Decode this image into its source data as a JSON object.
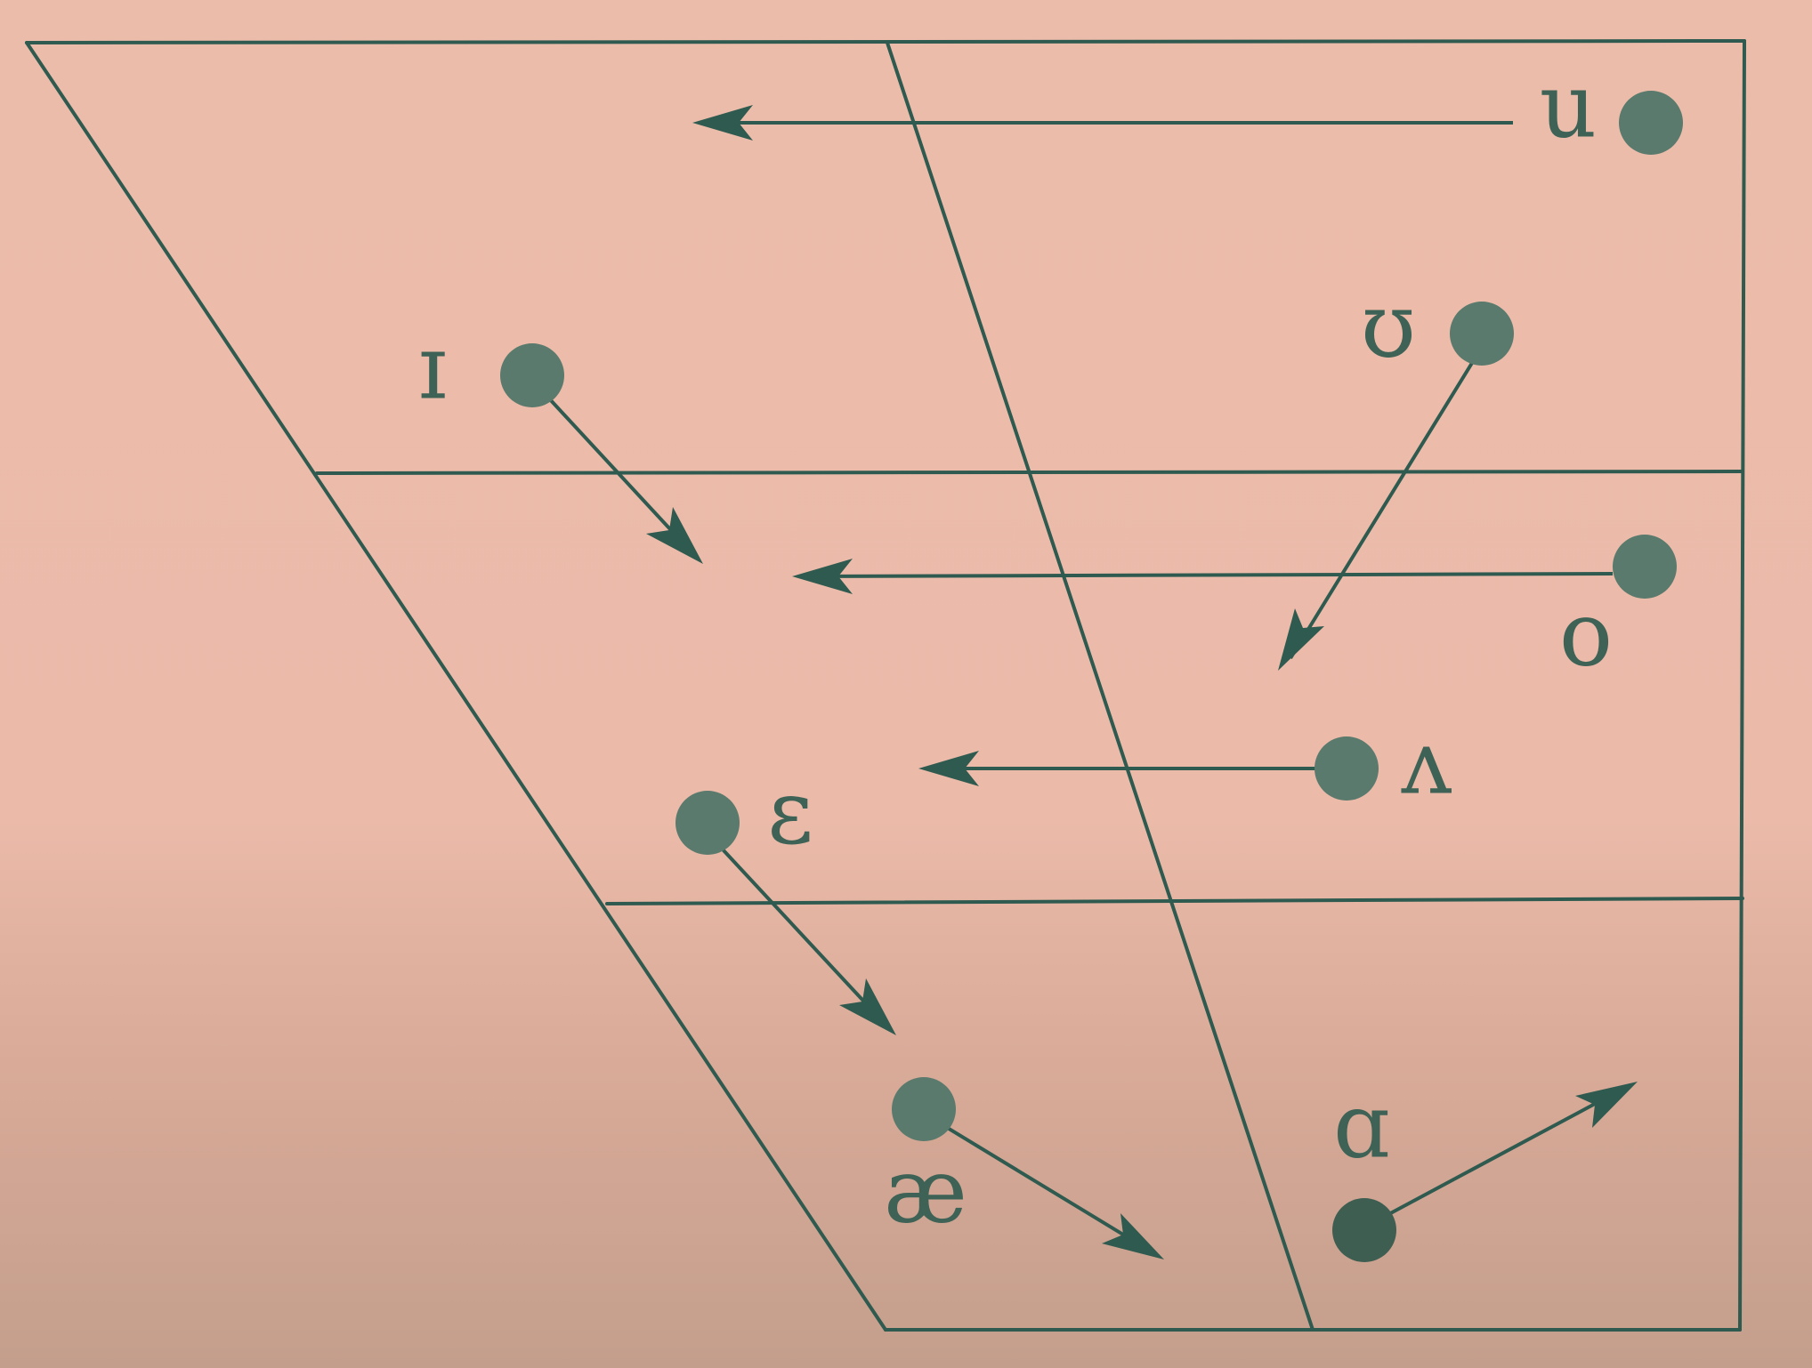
{
  "colors": {
    "background": "#ecbcab",
    "ink": "#2f5a4f",
    "dot": "#597a6c",
    "symbol": "#3e6356"
  },
  "vowels": {
    "u": "u",
    "upsilon": "ʊ",
    "small_cap_i": "ɪ",
    "o": "o",
    "wedge": "ʌ",
    "epsilon": "ɛ",
    "ash": "æ",
    "script_a": "ɑ"
  }
}
